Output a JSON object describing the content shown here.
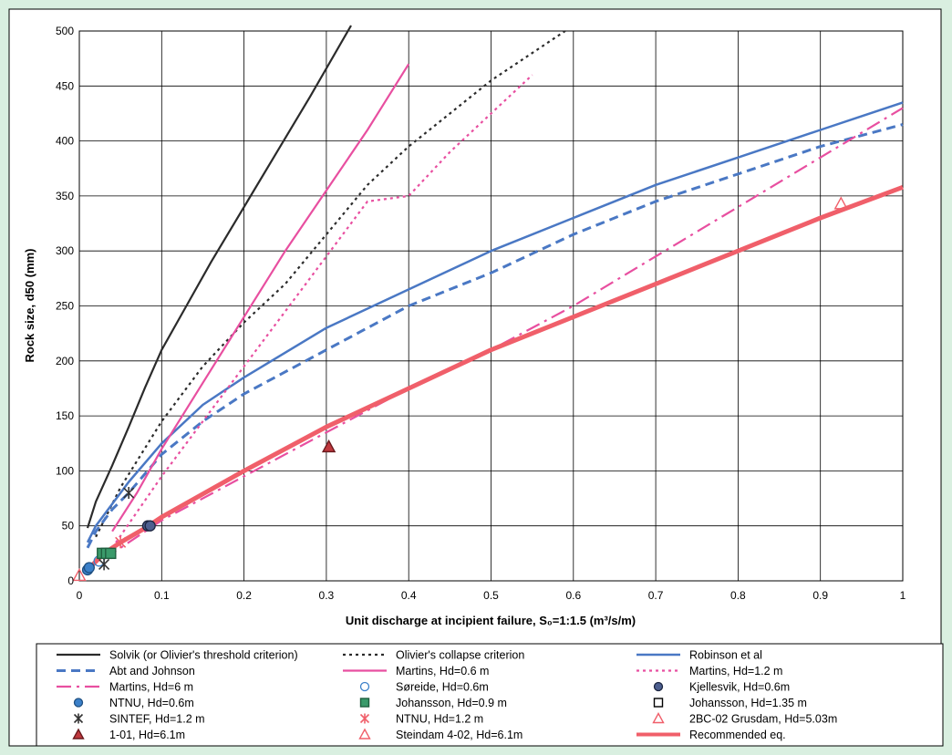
{
  "chart_data": {
    "type": "line",
    "xlabel": "Unit discharge at incipient failure, S₀=1:1.5  (m³/s/m)",
    "ylabel": "Rock size, d50 (mm)",
    "xlim": [
      0,
      1
    ],
    "ylim": [
      0,
      500
    ],
    "x_ticks": [
      "0",
      "0.1",
      "0.2",
      "0.3",
      "0.4",
      "0.5",
      "0.6",
      "0.7",
      "0.8",
      "0.9",
      "1"
    ],
    "y_ticks": [
      "0",
      "50",
      "100",
      "150",
      "200",
      "250",
      "300",
      "350",
      "400",
      "450",
      "500"
    ],
    "grid": true,
    "legend_position": "bottom",
    "series": [
      {
        "name": "Solvik (or Olivier's threshold criterion)",
        "kind": "line",
        "color": "#2b2b2b",
        "dash": "solid",
        "width": 2.2,
        "x": [
          0.01,
          0.02,
          0.04,
          0.06,
          0.08,
          0.1,
          0.13,
          0.16,
          0.2,
          0.24,
          0.28,
          0.33
        ],
        "y": [
          48,
          72,
          105,
          140,
          176,
          210,
          250,
          290,
          340,
          390,
          440,
          505
        ]
      },
      {
        "name": "Olivier's collapse criterion",
        "kind": "line",
        "color": "#2b2b2b",
        "dash": "dot",
        "width": 2.2,
        "x": [
          0.02,
          0.05,
          0.1,
          0.15,
          0.2,
          0.25,
          0.3,
          0.35,
          0.4,
          0.45,
          0.5,
          0.55,
          0.59
        ],
        "y": [
          40,
          85,
          145,
          195,
          235,
          270,
          315,
          360,
          395,
          425,
          455,
          480,
          500
        ]
      },
      {
        "name": "Robinson et al",
        "kind": "line",
        "color": "#4a78c4",
        "dash": "solid",
        "width": 2.5,
        "x": [
          0.01,
          0.02,
          0.04,
          0.06,
          0.1,
          0.15,
          0.2,
          0.3,
          0.4,
          0.5,
          0.6,
          0.7,
          0.8,
          0.9,
          1.0
        ],
        "y": [
          35,
          50,
          70,
          90,
          125,
          160,
          185,
          230,
          265,
          300,
          330,
          360,
          385,
          410,
          435
        ]
      },
      {
        "name": "Abt and Johnson",
        "kind": "line",
        "color": "#4a78c4",
        "dash": "dash",
        "width": 3,
        "x": [
          0.01,
          0.02,
          0.04,
          0.06,
          0.1,
          0.15,
          0.2,
          0.3,
          0.4,
          0.5,
          0.6,
          0.7,
          0.8,
          0.9,
          1.0
        ],
        "y": [
          30,
          45,
          65,
          80,
          115,
          145,
          170,
          210,
          250,
          280,
          315,
          345,
          370,
          395,
          415
        ]
      },
      {
        "name": "Martins, Hd=0.6 m",
        "kind": "line",
        "color": "#e84fa0",
        "dash": "solid",
        "width": 2.2,
        "x": [
          0.04,
          0.07,
          0.1,
          0.15,
          0.2,
          0.25,
          0.3,
          0.35,
          0.4
        ],
        "y": [
          45,
          80,
          120,
          180,
          240,
          300,
          355,
          410,
          470
        ]
      },
      {
        "name": "Martins, Hd=1.2 m",
        "kind": "line",
        "color": "#e84fa0",
        "dash": "dot",
        "width": 2.2,
        "x": [
          0.04,
          0.1,
          0.15,
          0.2,
          0.25,
          0.3,
          0.35,
          0.4,
          0.45,
          0.5,
          0.55
        ],
        "y": [
          30,
          95,
          145,
          195,
          245,
          295,
          345,
          350,
          390,
          425,
          460
        ]
      },
      {
        "name": "Martins, Hd=6 m",
        "kind": "line",
        "color": "#e84fa0",
        "dash": "dashdot",
        "width": 2.2,
        "x": [
          0.03,
          0.05,
          0.1,
          0.2,
          0.3,
          0.4,
          0.5,
          0.6,
          0.7,
          0.8,
          0.9,
          1.0
        ],
        "y": [
          20,
          30,
          55,
          95,
          135,
          175,
          210,
          250,
          295,
          340,
          385,
          430
        ]
      },
      {
        "name": "Recommended eq.",
        "kind": "line",
        "color": "#f05f6a",
        "dash": "solid",
        "width": 5,
        "x": [
          0.01,
          0.03,
          0.05,
          0.08,
          0.1,
          0.2,
          0.3,
          0.4,
          0.5,
          0.6,
          0.7,
          0.8,
          0.9,
          1.0
        ],
        "y": [
          10,
          25,
          35,
          48,
          58,
          100,
          140,
          175,
          210,
          240,
          270,
          300,
          330,
          358
        ]
      },
      {
        "name": "NTNU, Hd=0.6m",
        "kind": "marker",
        "marker": "circle-filled",
        "color": "#3b80c9",
        "stroke": "#1f4f80",
        "x": [
          0.01,
          0.012
        ],
        "y": [
          10,
          12
        ]
      },
      {
        "name": "Søreide, Hd=0.6m",
        "kind": "marker",
        "marker": "circle-open",
        "color": "#3b80c9",
        "stroke": "#3b80c9",
        "x": [
          0.024
        ],
        "y": [
          18
        ]
      },
      {
        "name": "Kjellesvik, Hd=0.6m",
        "kind": "marker",
        "marker": "circle-filled",
        "color": "#4d5f8f",
        "stroke": "#1c2540",
        "x": [
          0.083,
          0.086
        ],
        "y": [
          50,
          50
        ]
      },
      {
        "name": "SINTEF, Hd=1.2 m",
        "kind": "marker",
        "marker": "asterisk",
        "color": "#333333",
        "stroke": "#333333",
        "x": [
          0.03,
          0.06
        ],
        "y": [
          15,
          80
        ]
      },
      {
        "name": "Johansson, Hd=0.9 m",
        "kind": "marker",
        "marker": "square-filled",
        "color": "#3a9a6a",
        "stroke": "#1f5f3f",
        "x": [
          0.028,
          0.033,
          0.038
        ],
        "y": [
          25,
          25,
          25
        ]
      },
      {
        "name": "Johansson, Hd=1.35 m",
        "kind": "marker",
        "marker": "square-open",
        "color": "none",
        "stroke": "#000000",
        "x": [],
        "y": []
      },
      {
        "name": "NTNU, Hd=1.2 m",
        "kind": "marker",
        "marker": "asterisk",
        "color": "#f05f6a",
        "stroke": "#f05f6a",
        "x": [
          0.05
        ],
        "y": [
          35
        ]
      },
      {
        "name": "2BC-02 Grusdam, Hd=5.03m",
        "kind": "marker",
        "marker": "triangle-open",
        "color": "none",
        "stroke": "#f05f6a",
        "x": [
          0.925
        ],
        "y": [
          343
        ]
      },
      {
        "name": "1-01, Hd=6.1m",
        "kind": "marker",
        "marker": "triangle-filled",
        "color": "#c0393e",
        "stroke": "#6b1a1e",
        "x": [
          0.303
        ],
        "y": [
          122
        ]
      },
      {
        "name": "Steindam 4-02, Hd=6.1m",
        "kind": "marker",
        "marker": "triangle-open",
        "color": "none",
        "stroke": "#f05f6a",
        "x": [
          0.0
        ],
        "y": [
          5
        ]
      }
    ],
    "legend_order": [
      "Solvik (or Olivier's threshold criterion)",
      "Olivier's collapse criterion",
      "Robinson et al",
      "Abt and Johnson",
      "Martins, Hd=0.6 m",
      "Martins, Hd=1.2 m",
      "Martins, Hd=6 m",
      "Søreide, Hd=0.6m",
      "Kjellesvik, Hd=0.6m",
      "NTNU, Hd=0.6m",
      "Johansson, Hd=0.9 m",
      "Johansson, Hd=1.35 m",
      "SINTEF, Hd=1.2 m",
      "NTNU, Hd=1.2 m",
      "2BC-02 Grusdam, Hd=5.03m",
      "1-01, Hd=6.1m",
      "Steindam 4-02, Hd=6.1m",
      "Recommended eq."
    ]
  }
}
